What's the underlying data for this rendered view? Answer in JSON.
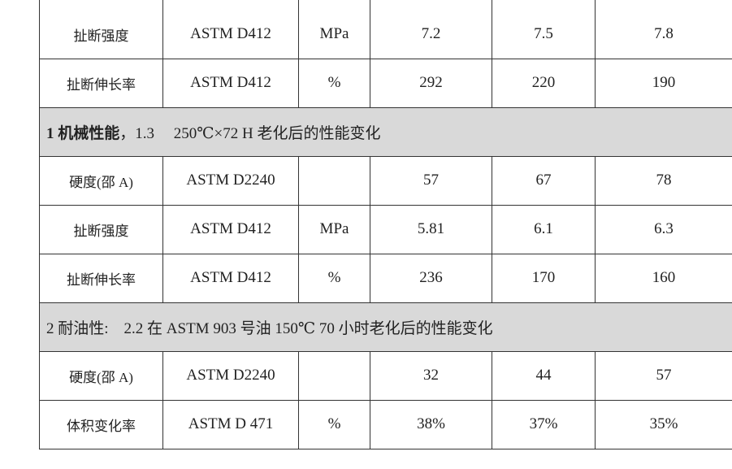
{
  "rows": [
    {
      "type": "data",
      "property": "扯断强度",
      "method": "ASTM D412",
      "unit": "MPa",
      "values": [
        "7.2",
        "7.5",
        "7.8"
      ]
    },
    {
      "type": "data",
      "property": "扯断伸长率",
      "method": "ASTM D412",
      "unit": "%",
      "values": [
        "292",
        "220",
        "190"
      ]
    },
    {
      "type": "section",
      "bold": "1 机械性能",
      "text": "，1.3　 250℃×72 H 老化后的性能变化"
    },
    {
      "type": "data",
      "property": "硬度(邵 A)",
      "method": "ASTM D2240",
      "unit": "",
      "values": [
        "57",
        "67",
        "78"
      ]
    },
    {
      "type": "data",
      "property": "扯断强度",
      "method": "ASTM D412",
      "unit": "MPa",
      "values": [
        "5.81",
        "6.1",
        "6.3"
      ]
    },
    {
      "type": "data",
      "property": "扯断伸长率",
      "method": "ASTM D412",
      "unit": "%",
      "values": [
        "236",
        "170",
        "160"
      ]
    },
    {
      "type": "section",
      "bold": "",
      "text": "2 耐油性:　2.2 在 ASTM 903 号油  150℃  70  小时老化后的性能变化"
    },
    {
      "type": "data",
      "property": "硬度(邵 A)",
      "method": "ASTM D2240",
      "unit": "",
      "values": [
        "32",
        "44",
        "57"
      ]
    },
    {
      "type": "data",
      "property": "体积变化率",
      "method": "ASTM D 471",
      "unit": "%",
      "values": [
        "38%",
        "37%",
        "35%"
      ]
    }
  ],
  "colors": {
    "section_bg": "#d9d9d9",
    "border": "#333333"
  }
}
